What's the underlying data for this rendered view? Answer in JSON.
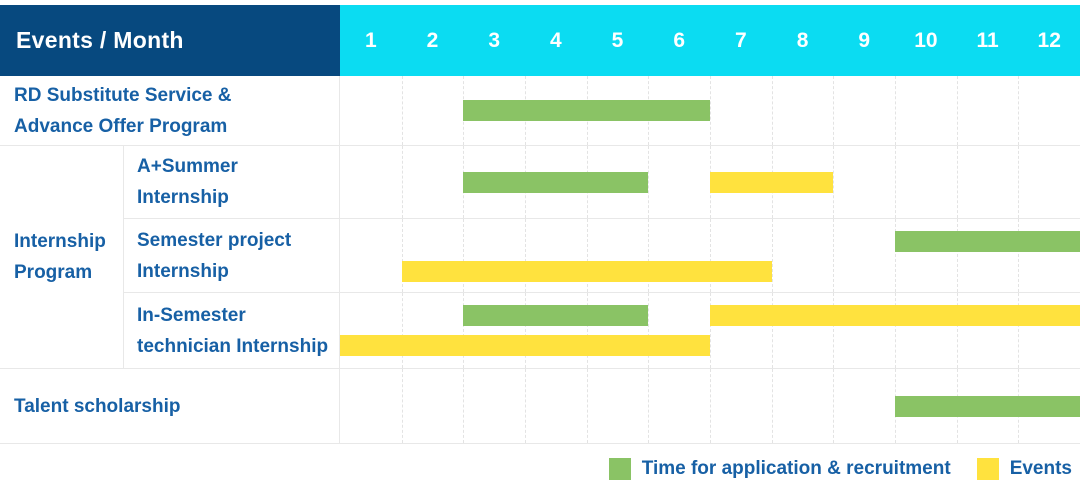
{
  "header": {
    "title": "Events / Month"
  },
  "colors": {
    "navy": "#07497f",
    "cyan": "#0bdcf2",
    "green": "#8ac365",
    "yellow": "#ffe23e",
    "label_blue": "#1760a5",
    "grid": "#e8e8e8"
  },
  "internship_group": {
    "label": "Internship Program",
    "lines": [
      "Internship",
      "Program"
    ]
  },
  "legend": [
    {
      "key": "application",
      "label": "Time for application & recruitment",
      "color": "#8ac365"
    },
    {
      "key": "event",
      "label": "Events",
      "color": "#ffe23e"
    }
  ],
  "chart_data": {
    "type": "bar",
    "subtype": "gantt-schedule",
    "title": "Events / Month",
    "x_categories": [
      "1",
      "2",
      "3",
      "4",
      "5",
      "6",
      "7",
      "8",
      "9",
      "10",
      "11",
      "12"
    ],
    "x_range": [
      1,
      12
    ],
    "grid": "dashed-vertical-month-lines",
    "legend_position": "bottom-right",
    "bar_kinds": {
      "application": "Time for application & recruitment (green)",
      "event": "Events (yellow)"
    },
    "rows": [
      {
        "group": null,
        "label": "RD Substitute Service & Advance Offer Program",
        "label_lines": [
          "RD Substitute Service &",
          "Advance Offer Program"
        ],
        "bars": [
          {
            "kind": "application",
            "start_month": 3,
            "end_month": 6,
            "lane": "single"
          }
        ]
      },
      {
        "group": "Internship Program",
        "label": "A+Summer Internship",
        "label_lines": [
          "A+Summer",
          "Internship"
        ],
        "bars": [
          {
            "kind": "application",
            "start_month": 3,
            "end_month": 5,
            "lane": "single"
          },
          {
            "kind": "event",
            "start_month": 7,
            "end_month": 8,
            "lane": "single"
          }
        ]
      },
      {
        "group": "Internship Program",
        "label": "Semester project Internship",
        "label_lines": [
          "Semester project",
          "Internship"
        ],
        "bars": [
          {
            "kind": "application",
            "start_month": 10,
            "end_month": 12,
            "lane": "top"
          },
          {
            "kind": "event",
            "start_month": 2,
            "end_month": 7,
            "lane": "bottom"
          }
        ]
      },
      {
        "group": "Internship Program",
        "label": "In-Semester technician Internship",
        "label_lines": [
          "In-Semester",
          "technician Internship"
        ],
        "bars": [
          {
            "kind": "application",
            "start_month": 3,
            "end_month": 5,
            "lane": "top"
          },
          {
            "kind": "event",
            "start_month": 7,
            "end_month": 12,
            "lane": "top"
          },
          {
            "kind": "event",
            "start_month": 1,
            "end_month": 6,
            "lane": "bottom"
          }
        ]
      },
      {
        "group": null,
        "label": "Talent scholarship",
        "label_lines": [
          "Talent scholarship"
        ],
        "bars": [
          {
            "kind": "application",
            "start_month": 10,
            "end_month": 12,
            "lane": "single"
          }
        ]
      }
    ]
  }
}
